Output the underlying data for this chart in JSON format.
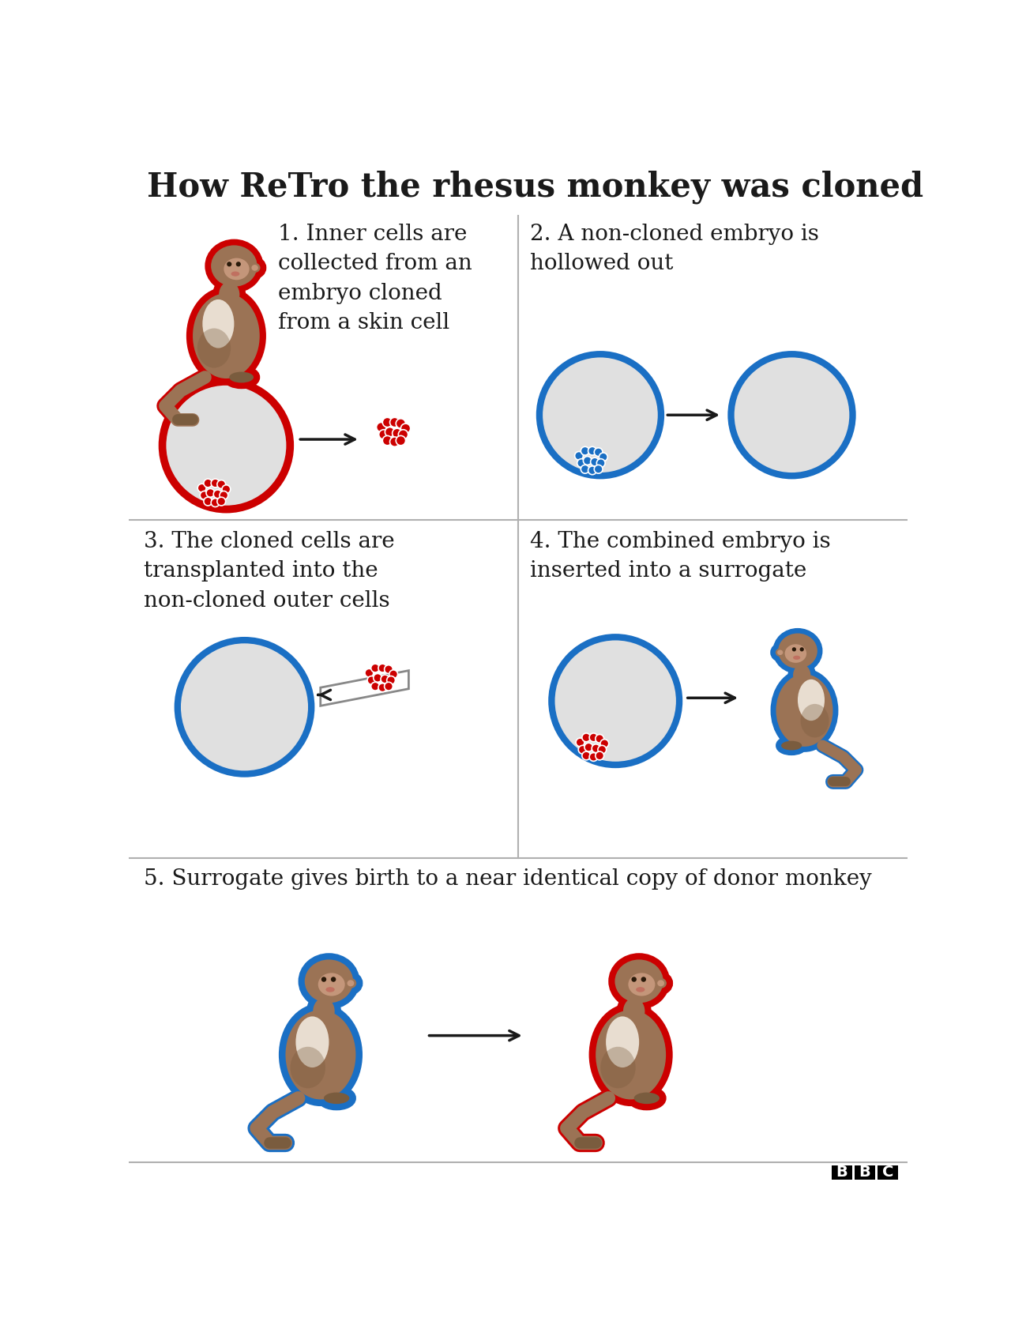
{
  "title": "How ReTro the rhesus monkey was cloned",
  "title_fontsize": 30,
  "background_color": "#ffffff",
  "text_color": "#1a1a1a",
  "red_color": "#cc0000",
  "blue_color": "#1a6fc4",
  "grid_line_color": "#b0b0b0",
  "step1_title": "1. Inner cells are\ncollected from an\nembryo cloned\nfrom a skin cell",
  "step2_title": "2. A non-cloned embryo is\nhollowed out",
  "step3_title": "3. The cloned cells are\ntransplanted into the\nnon-cloned outer cells",
  "step4_title": "4. The combined embryo is\ninserted into a surrogate",
  "step5_title": "5. Surrogate gives birth to a near identical copy of donor monkey",
  "monkey_body": "#9b7355",
  "monkey_face": "#c4967a",
  "monkey_chest": "#e8ddd0",
  "monkey_dark": "#7a5c3e",
  "font_family": "DejaVu Serif"
}
